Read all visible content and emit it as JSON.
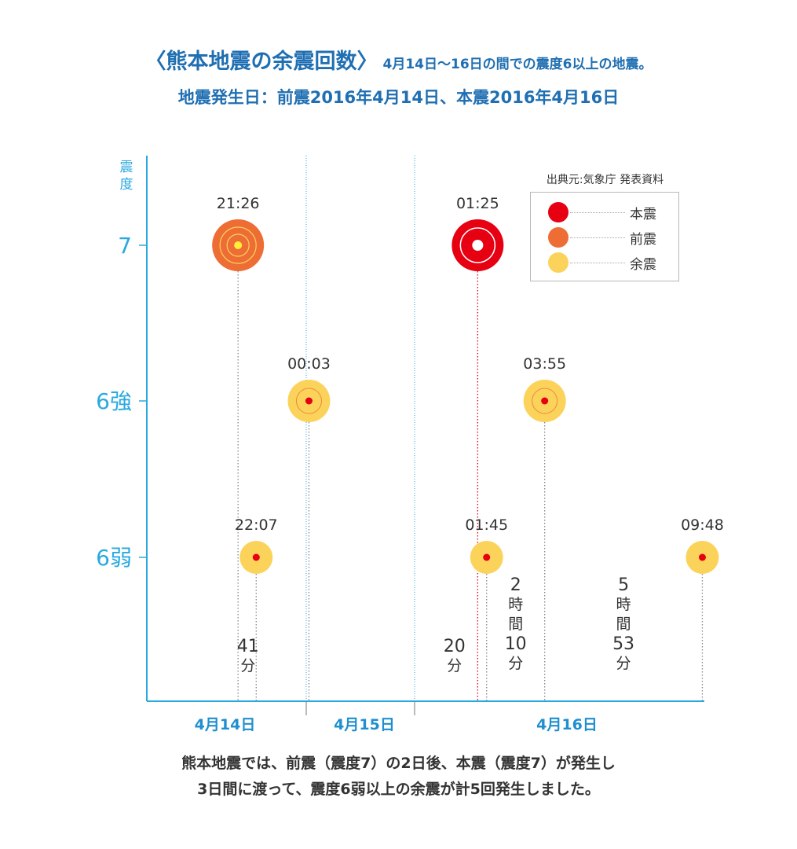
{
  "title": {
    "main": "〈熊本地震の余震回数〉",
    "sub": "4月14日〜16日の間での震度6以上の地震。",
    "line2": "地震発生日：前震2016年4月14日、本震2016年4月16日"
  },
  "footer": {
    "line1": "熊本地震では、前震（震度7）の2日後、本震（震度7）が発生し",
    "line2": "3日間に渡って、震度6弱以上の余震が計5回発生しました。"
  },
  "legend": {
    "source": "出典元:気象庁 発表資料",
    "items": [
      {
        "label": "本震",
        "color": "#e60012"
      },
      {
        "label": "前震",
        "color": "#ed6d35"
      },
      {
        "label": "余震",
        "color": "#fbd35b"
      }
    ]
  },
  "chart_data": {
    "type": "scatter",
    "ylabel": "震度",
    "y_levels": [
      "6弱",
      "6強",
      "7"
    ],
    "y_tick_labels": [
      "7",
      "6強",
      "6弱"
    ],
    "day_labels": [
      "4月14日",
      "4月15日",
      "4月16日"
    ],
    "colors": {
      "mainshock": "#e60012",
      "foreshock": "#ed6d35",
      "aftershock": "#fbd35b",
      "axis": "#29a9e0",
      "dotcenter_red": "#e60012",
      "dotcenter_yellow": "#ffef3a"
    },
    "points": [
      {
        "date": "4月14日",
        "time": "21:26",
        "intensity": "7",
        "type": "foreshock"
      },
      {
        "date": "4月14日",
        "time": "22:07",
        "intensity": "6弱",
        "type": "aftershock"
      },
      {
        "date": "4月15日",
        "time": "00:03",
        "intensity": "6強",
        "type": "aftershock"
      },
      {
        "date": "4月16日",
        "time": "01:25",
        "intensity": "7",
        "type": "mainshock"
      },
      {
        "date": "4月16日",
        "time": "01:45",
        "intensity": "6弱",
        "type": "aftershock"
      },
      {
        "date": "4月16日",
        "time": "03:55",
        "intensity": "6強",
        "type": "aftershock"
      },
      {
        "date": "4月16日",
        "time": "09:48",
        "intensity": "6弱",
        "type": "aftershock"
      }
    ],
    "intervals": [
      {
        "lines": [
          "41",
          "分"
        ]
      },
      {
        "lines": [
          "20",
          "分"
        ]
      },
      {
        "lines": [
          "2",
          "時",
          "間",
          "10",
          "分"
        ]
      },
      {
        "lines": [
          "5",
          "時",
          "間",
          "53",
          "分"
        ]
      }
    ]
  }
}
